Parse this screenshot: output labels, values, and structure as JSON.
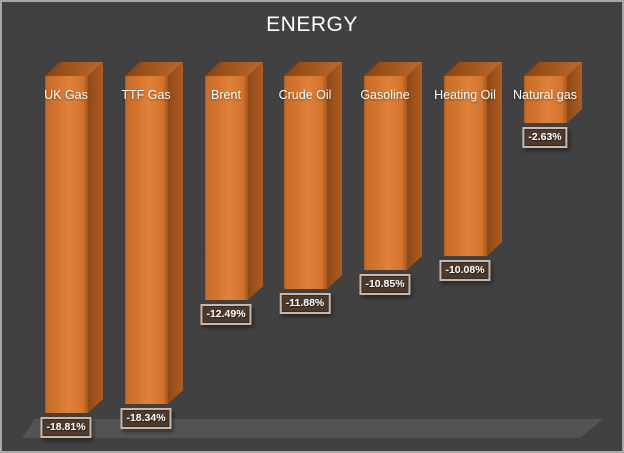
{
  "window": {
    "background": "#414141",
    "border_color": "#a8a8a8",
    "floor_color": "#535353"
  },
  "chart_data": {
    "type": "bar",
    "style": "3d-column",
    "title": "ENERGY",
    "categories": [
      "UK Gas",
      "TTF Gas",
      "Brent",
      "Crude Oil",
      "Gasoline",
      "Heating Oil",
      "Natural gas"
    ],
    "values": [
      -18.81,
      -18.34,
      -12.49,
      -11.88,
      -10.85,
      -10.08,
      -2.63
    ],
    "data_labels": [
      "-18.81%",
      "-18.34%",
      "-12.49%",
      "-11.88%",
      "-10.85%",
      "-10.08%",
      "-2.63%"
    ],
    "unit": "%",
    "ylim": [
      -20,
      0
    ],
    "grid": "off",
    "legend": "none",
    "axis_labels_visible": false,
    "colors": {
      "bar_front": "#d97831",
      "bar_front_light": "#e0813c",
      "bar_front_dark": "#a6561d",
      "bar_side": "#a0541c",
      "bar_top": "#b96527",
      "label_box_background": "#4d3a2c",
      "label_box_border": "#c6b9ac",
      "text": "#ffffff",
      "background": "#414141",
      "floor": "#535353"
    }
  }
}
